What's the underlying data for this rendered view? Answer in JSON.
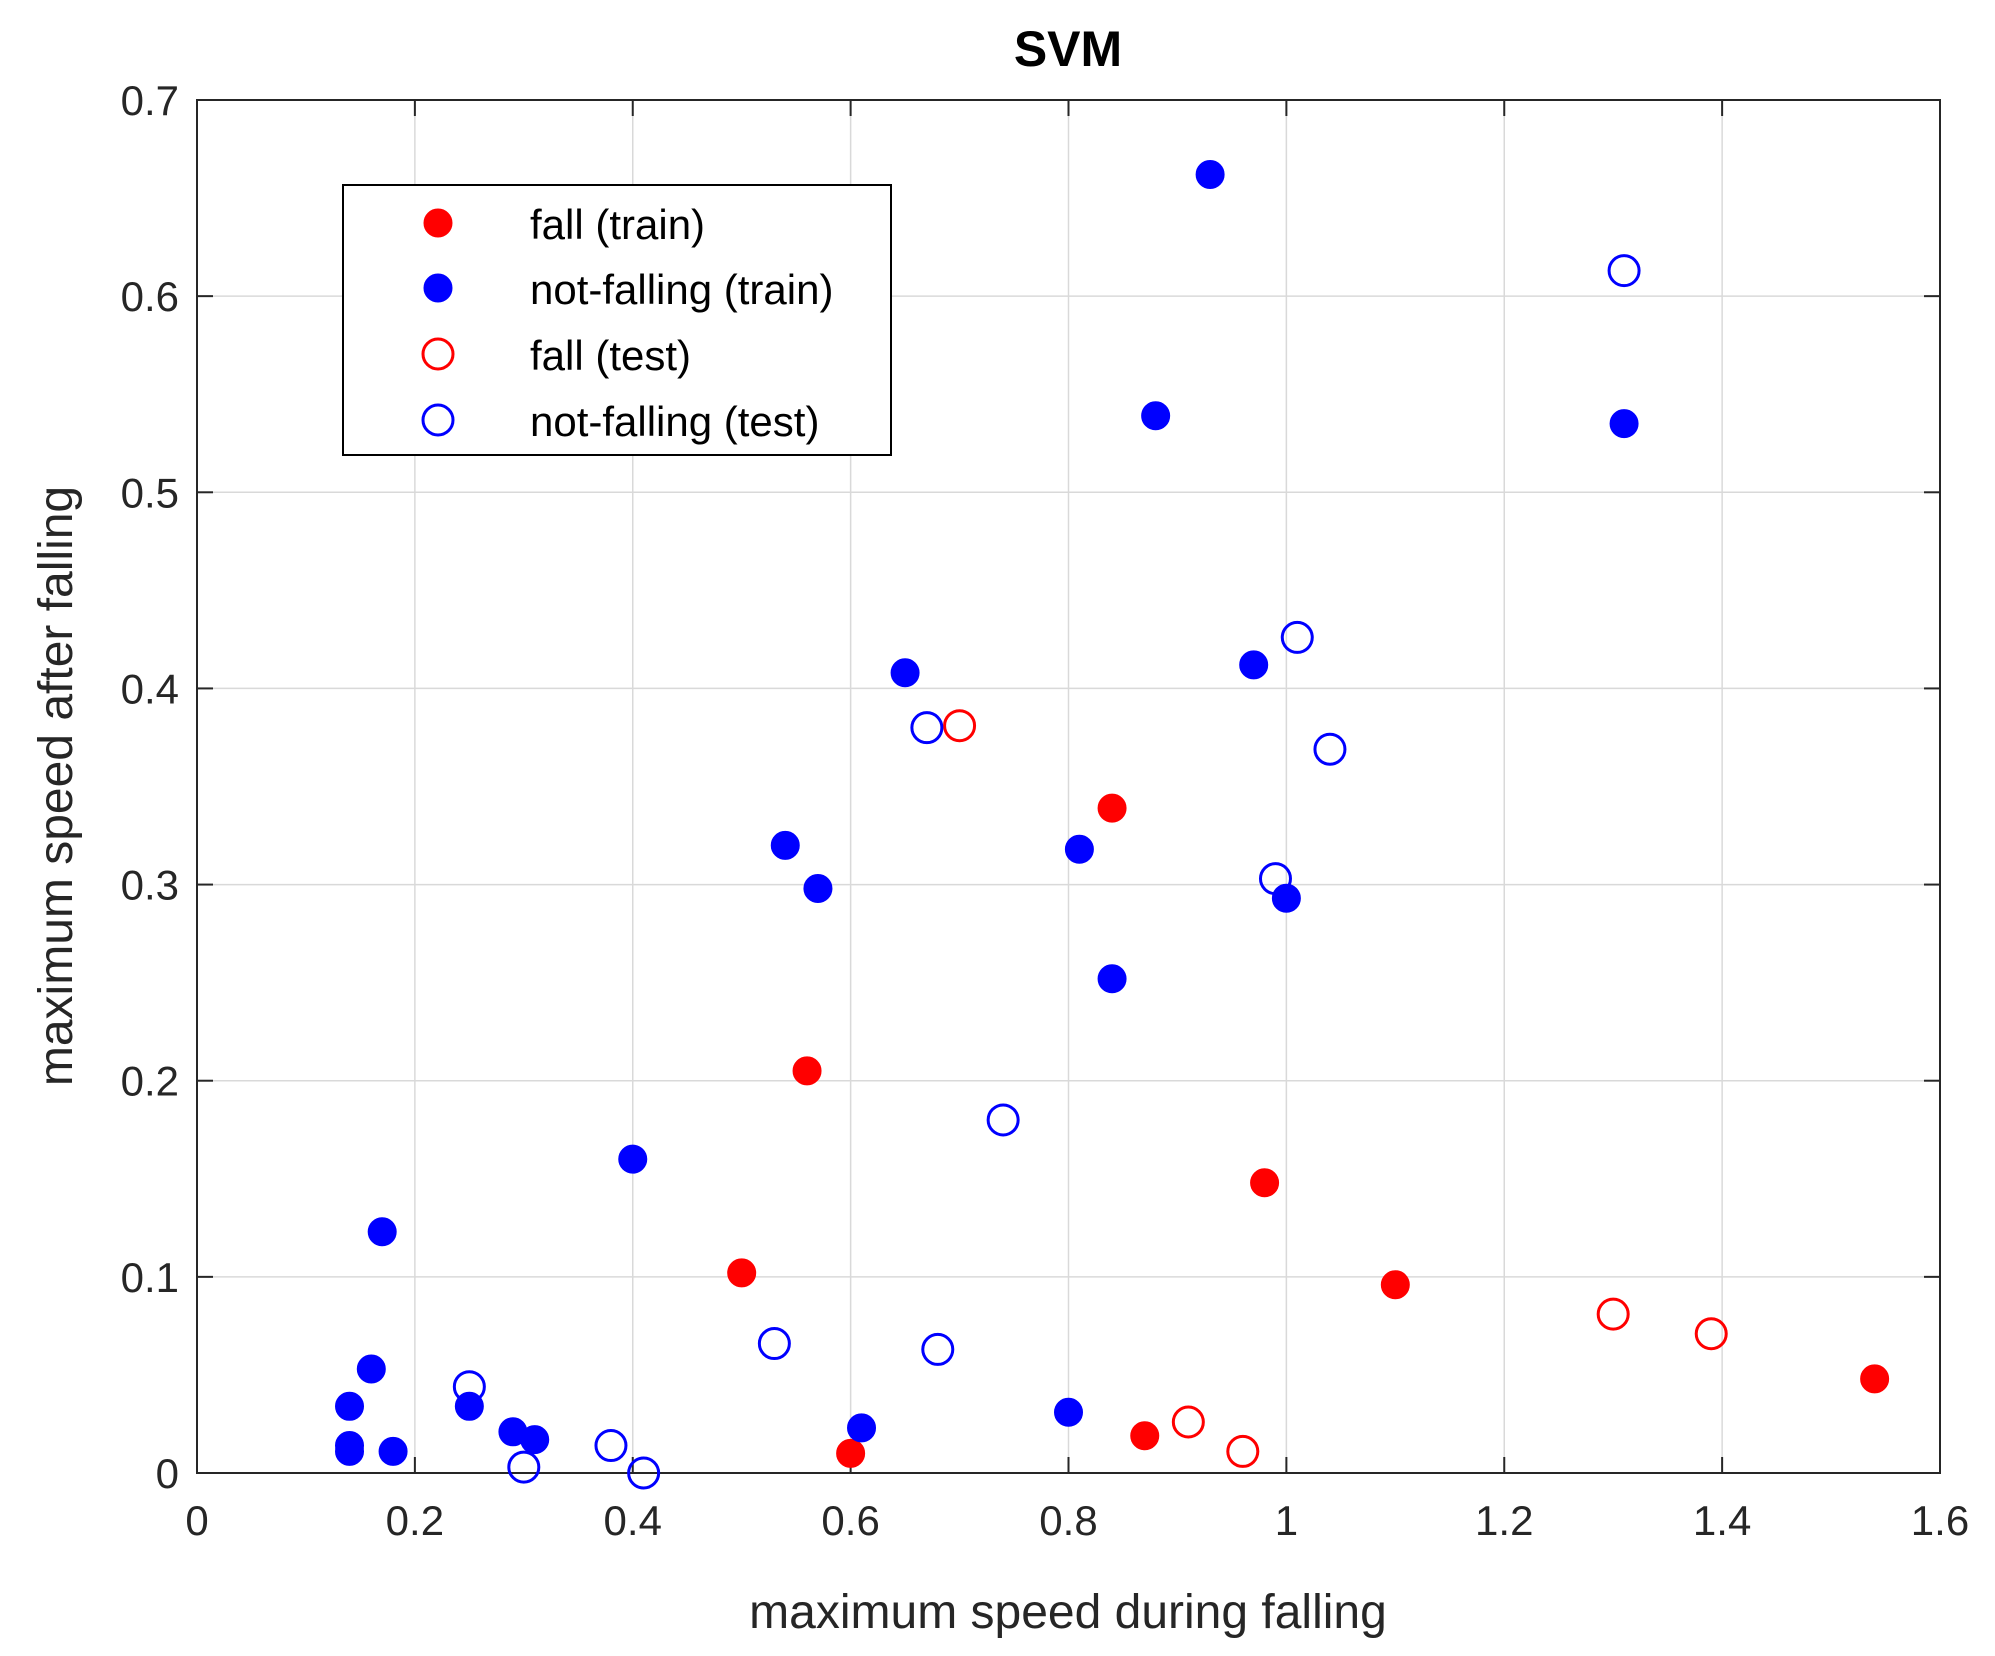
{
  "chart_data": {
    "type": "scatter",
    "title": "SVM",
    "xlabel": "maximum speed during falling",
    "ylabel": "maximum speed after falling",
    "xlim": [
      0,
      1.6
    ],
    "ylim": [
      0,
      0.7
    ],
    "xticks": [
      0,
      0.2,
      0.4,
      0.6,
      0.8,
      1,
      1.2,
      1.4,
      1.6
    ],
    "yticks": [
      0,
      0.1,
      0.2,
      0.3,
      0.4,
      0.5,
      0.6,
      0.7
    ],
    "xtick_labels": [
      "0",
      "0.2",
      "0.4",
      "0.6",
      "0.8",
      "1",
      "1.2",
      "1.4",
      "1.6"
    ],
    "ytick_labels": [
      "0",
      "0.1",
      "0.2",
      "0.3",
      "0.4",
      "0.5",
      "0.6",
      "0.7"
    ],
    "grid": true,
    "legend_position": "top-left",
    "series": [
      {
        "name": "fall (train)",
        "color": "#ff0000",
        "marker": "filled-circle",
        "points": [
          [
            0.56,
            0.205
          ],
          [
            0.5,
            0.102
          ],
          [
            0.84,
            0.339
          ],
          [
            0.98,
            0.148
          ],
          [
            1.1,
            0.096
          ],
          [
            0.6,
            0.01
          ],
          [
            0.87,
            0.019
          ],
          [
            1.54,
            0.048
          ]
        ]
      },
      {
        "name": "not-falling (train)",
        "color": "#0000ff",
        "marker": "filled-circle",
        "points": [
          [
            0.93,
            0.662
          ],
          [
            0.88,
            0.539
          ],
          [
            1.31,
            0.535
          ],
          [
            0.65,
            0.408
          ],
          [
            0.97,
            0.412
          ],
          [
            0.54,
            0.32
          ],
          [
            0.57,
            0.298
          ],
          [
            0.81,
            0.318
          ],
          [
            1,
            0.293
          ],
          [
            0.84,
            0.252
          ],
          [
            0.4,
            0.16
          ],
          [
            0.17,
            0.123
          ],
          [
            0.16,
            0.053
          ],
          [
            0.14,
            0.034
          ],
          [
            0.25,
            0.034
          ],
          [
            0.14,
            0.014
          ],
          [
            0.14,
            0.011
          ],
          [
            0.18,
            0.011
          ],
          [
            0.29,
            0.021
          ],
          [
            0.31,
            0.017
          ],
          [
            0.61,
            0.023
          ],
          [
            0.8,
            0.031
          ]
        ]
      },
      {
        "name": "fall (test)",
        "color": "#ff0000",
        "marker": "open-circle",
        "points": [
          [
            0.7,
            0.381
          ],
          [
            1.3,
            0.081
          ],
          [
            1.39,
            0.071
          ],
          [
            0.91,
            0.026
          ],
          [
            0.96,
            0.011
          ]
        ]
      },
      {
        "name": "not-falling (test)",
        "color": "#0000ff",
        "marker": "open-circle",
        "points": [
          [
            1.31,
            0.613
          ],
          [
            1.01,
            0.426
          ],
          [
            1.04,
            0.369
          ],
          [
            0.67,
            0.38
          ],
          [
            0.99,
            0.303
          ],
          [
            0.74,
            0.18
          ],
          [
            0.53,
            0.066
          ],
          [
            0.68,
            0.063
          ],
          [
            0.25,
            0.044
          ],
          [
            0.38,
            0.014
          ],
          [
            0.3,
            0.003
          ],
          [
            0.41,
            0
          ]
        ]
      }
    ]
  }
}
